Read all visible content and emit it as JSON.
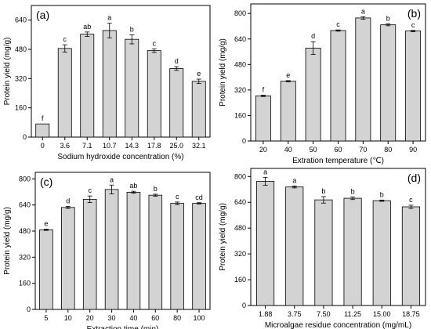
{
  "chart_data": [
    {
      "type": "bar",
      "panel_label": "(a)",
      "categories": [
        "0",
        "3.6",
        "7.1",
        "10.7",
        "14.3",
        "17.8",
        "25.0",
        "32.1"
      ],
      "values": [
        72,
        485,
        563,
        583,
        535,
        473,
        375,
        305
      ],
      "errors": [
        0,
        20,
        12,
        40,
        25,
        10,
        10,
        12
      ],
      "letters": [
        "f",
        "c",
        "ab",
        "a",
        "b",
        "c",
        "d",
        "e"
      ],
      "xlabel": "Sodium hydroxide concentration (%)",
      "ylabel": "Protein yield (mg/g)",
      "ylim": [
        0,
        720
      ],
      "yticks": [
        0,
        160,
        320,
        480,
        640
      ]
    },
    {
      "type": "bar",
      "panel_label": "(b)",
      "categories": [
        "20",
        "40",
        "50",
        "60",
        "70",
        "80",
        "90"
      ],
      "values": [
        283,
        375,
        583,
        693,
        772,
        729,
        690
      ],
      "errors": [
        4,
        4,
        40,
        4,
        8,
        6,
        4
      ],
      "letters": [
        "f",
        "e",
        "d",
        "c",
        "a",
        "b",
        "c"
      ],
      "xlabel": "Extration temperature (℃)",
      "ylabel": "Protein yield (mg/g)",
      "ylim": [
        0,
        860
      ],
      "yticks": [
        0,
        160,
        320,
        480,
        640,
        800
      ]
    },
    {
      "type": "bar",
      "panel_label": "(c)",
      "categories": [
        "5",
        "10",
        "20",
        "30",
        "40",
        "60",
        "80",
        "100"
      ],
      "values": [
        488,
        625,
        675,
        735,
        718,
        700,
        650,
        650
      ],
      "errors": [
        4,
        6,
        20,
        27,
        6,
        6,
        8,
        4
      ],
      "letters": [
        "e",
        "d",
        "c",
        "a",
        "ab",
        "b",
        "c",
        "cd"
      ],
      "xlabel": "Extraction time (min)",
      "ylabel": "Protein yield (mg/g)",
      "ylim": [
        0,
        840
      ],
      "yticks": [
        0,
        160,
        320,
        480,
        640,
        800
      ]
    },
    {
      "type": "bar",
      "panel_label": "(d)",
      "categories": [
        "1.88",
        "3.75",
        "7.50",
        "11.25",
        "15.00",
        "18.75"
      ],
      "values": [
        770,
        735,
        655,
        665,
        650,
        612
      ],
      "errors": [
        25,
        6,
        20,
        8,
        4,
        10
      ],
      "letters": [
        "a",
        "a",
        "b",
        "b",
        "b",
        "c"
      ],
      "xlabel": "Microalgae residue concentration (mg/mL)",
      "ylabel": "Protein yield (mg/g)",
      "ylim": [
        0,
        850
      ],
      "yticks": [
        0,
        160,
        320,
        480,
        640,
        800
      ]
    }
  ]
}
